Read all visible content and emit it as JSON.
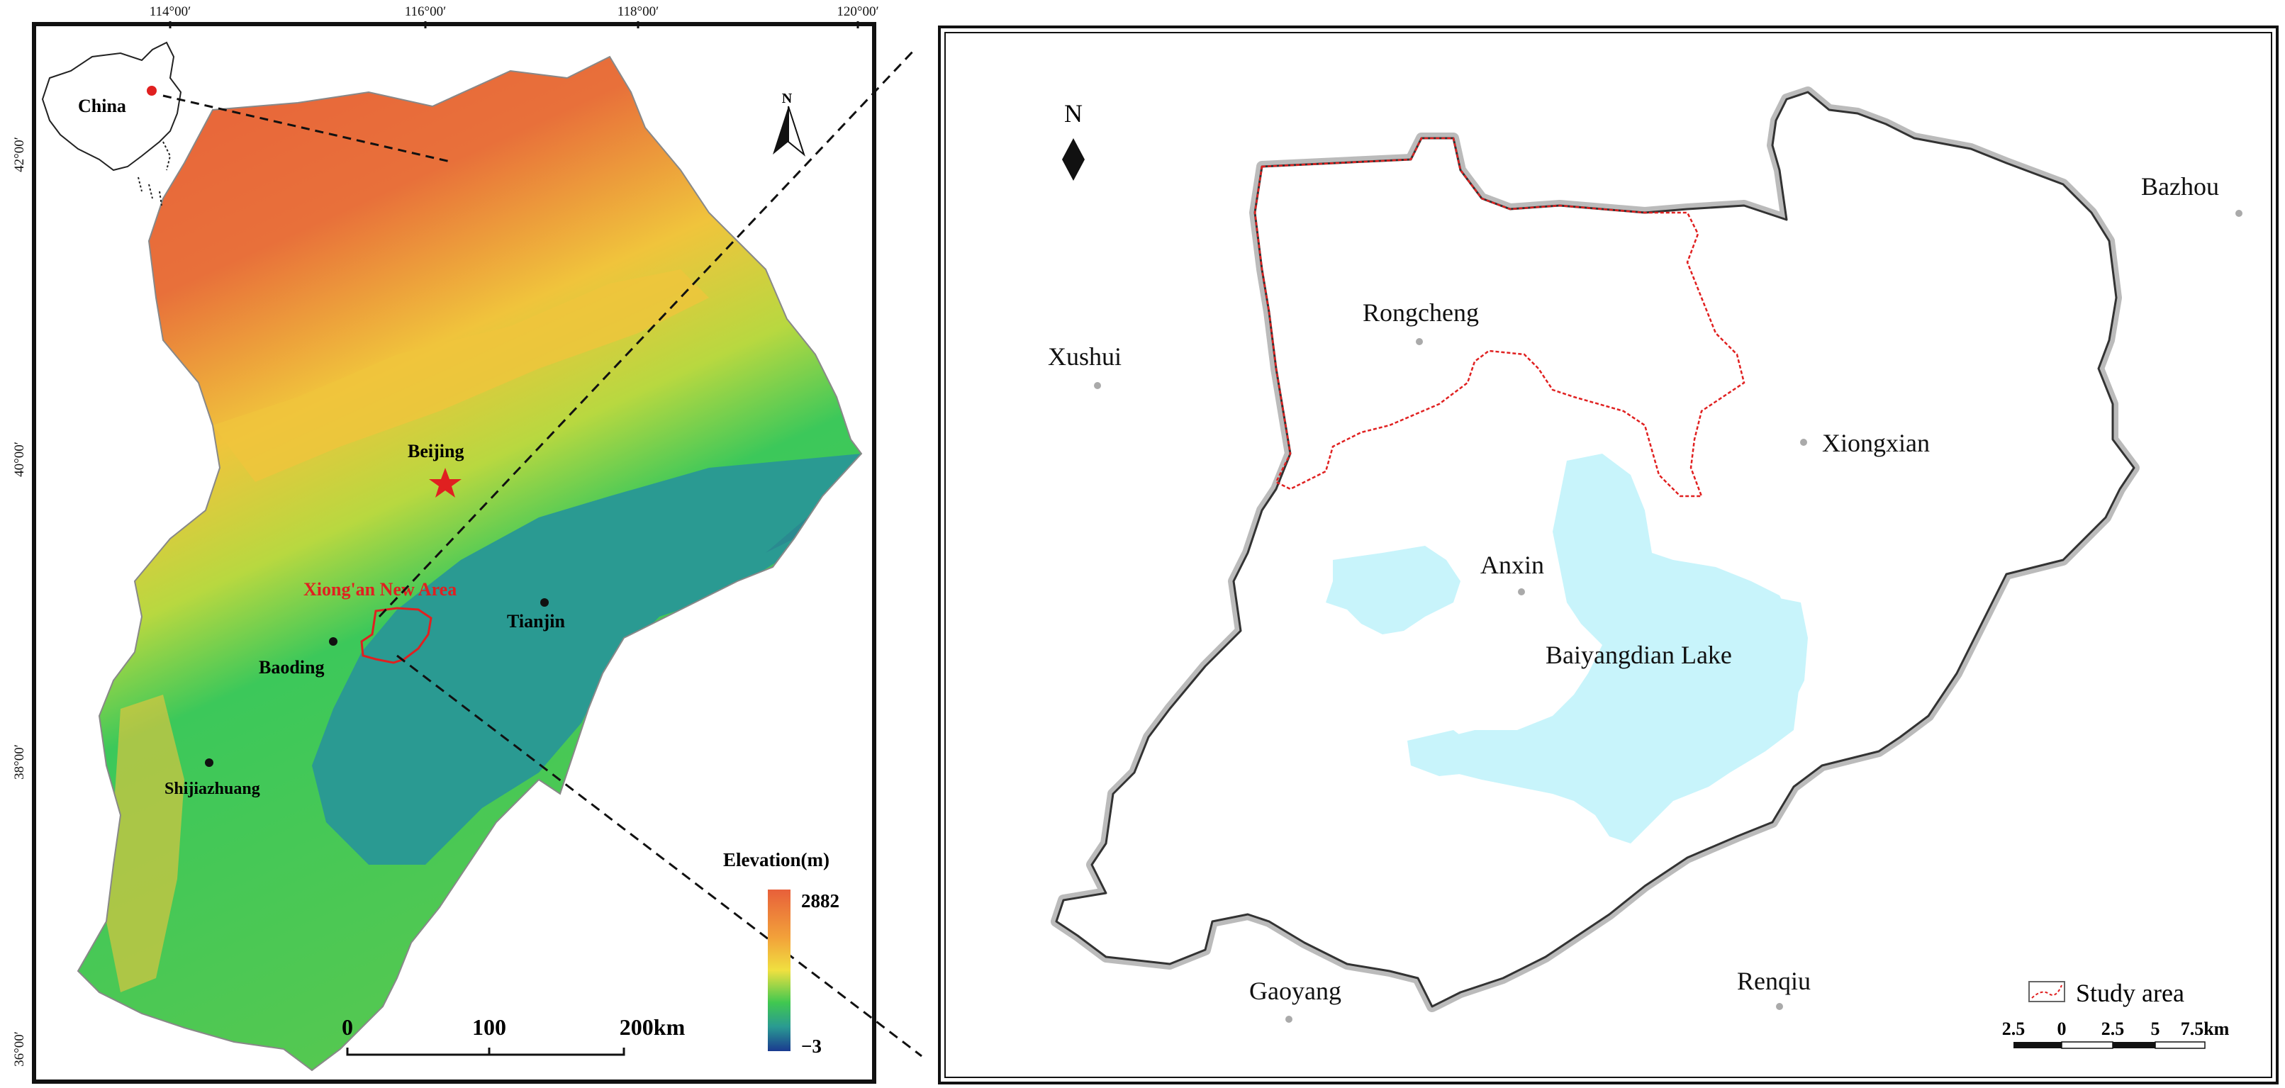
{
  "left_map": {
    "lon_labels": [
      "114°00′",
      "116°00′",
      "118°00′",
      "120°00′"
    ],
    "lat_labels": [
      "42°00′",
      "40°00′",
      "38°00′",
      "36°00′"
    ],
    "inset_label": "China",
    "north_label": "N",
    "cities": [
      {
        "name": "Beijing"
      },
      {
        "name": "Tianjin"
      },
      {
        "name": "Baoding"
      },
      {
        "name": "Shijiazhuang"
      }
    ],
    "study_label": "Xiong'an New Area",
    "scalebar": {
      "labels": [
        "0",
        "100",
        "200km"
      ]
    },
    "legend": {
      "title": "Elevation(m)",
      "max": "2882",
      "min": "−3"
    }
  },
  "right_map": {
    "north_label": "N",
    "places": [
      {
        "name": "Bazhou"
      },
      {
        "name": "Rongcheng"
      },
      {
        "name": "Xushui"
      },
      {
        "name": "Xiongxian"
      },
      {
        "name": "Anxin"
      },
      {
        "name": "Baiyangdian Lake"
      },
      {
        "name": "Gaoyang"
      },
      {
        "name": "Renqiu"
      }
    ],
    "legend_label": "Study area",
    "scalebar_labels": [
      "2.5",
      "0",
      "2.5",
      "5",
      "7.5km"
    ]
  },
  "colors": {
    "high": "#e8603a",
    "mid_high": "#f0d23c",
    "mid": "#3cc85a",
    "low": "#2a9a92",
    "lake": "#c8f4fb",
    "study_red": "#e02020"
  }
}
